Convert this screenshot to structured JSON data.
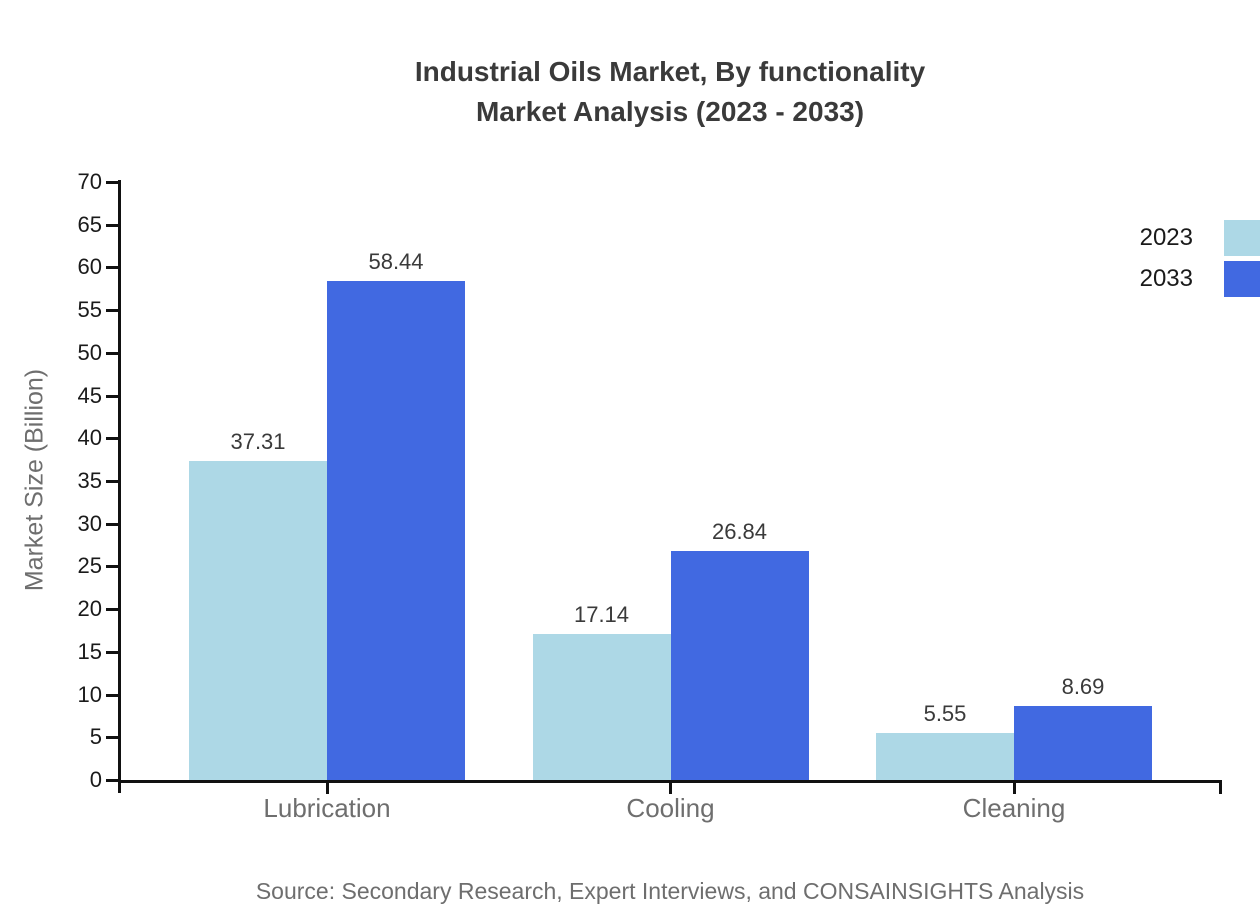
{
  "title": {
    "line1": "Industrial Oils Market, By functionality",
    "line2": "Market Analysis (2023 - 2033)"
  },
  "source": "Source: Secondary Research, Expert Interviews, and CONSAINSIGHTS Analysis",
  "legend": {
    "items": [
      {
        "label": "2023",
        "color": "#add8e6"
      },
      {
        "label": "2033",
        "color": "#4169e1"
      }
    ]
  },
  "chart_data": {
    "type": "bar",
    "title": "Industrial Oils Market, By functionality Market Analysis (2023 - 2033)",
    "categories": [
      "Lubrication",
      "Cooling",
      "Cleaning"
    ],
    "series": [
      {
        "name": "2023",
        "color": "#add8e6",
        "values": [
          37.31,
          17.14,
          5.55
        ]
      },
      {
        "name": "2033",
        "color": "#4169e1",
        "values": [
          58.44,
          26.84,
          8.69
        ]
      }
    ],
    "xlabel": "",
    "ylabel": "Market Size (Billion)",
    "ylim": [
      0,
      70
    ],
    "ytick_step": 5,
    "yticks": [
      0,
      5,
      10,
      15,
      20,
      25,
      30,
      35,
      40,
      45,
      50,
      55,
      60,
      65,
      70
    ],
    "grid": false,
    "legend_position": "right",
    "value_labels": true,
    "colors": {
      "axis": "#111111",
      "tick_label": "#1a1a1a",
      "category_label": "#6e6e6e",
      "value_label": "#3a3a3a",
      "title": "#3a3a3a",
      "muted_text": "#6e6e6e"
    }
  }
}
